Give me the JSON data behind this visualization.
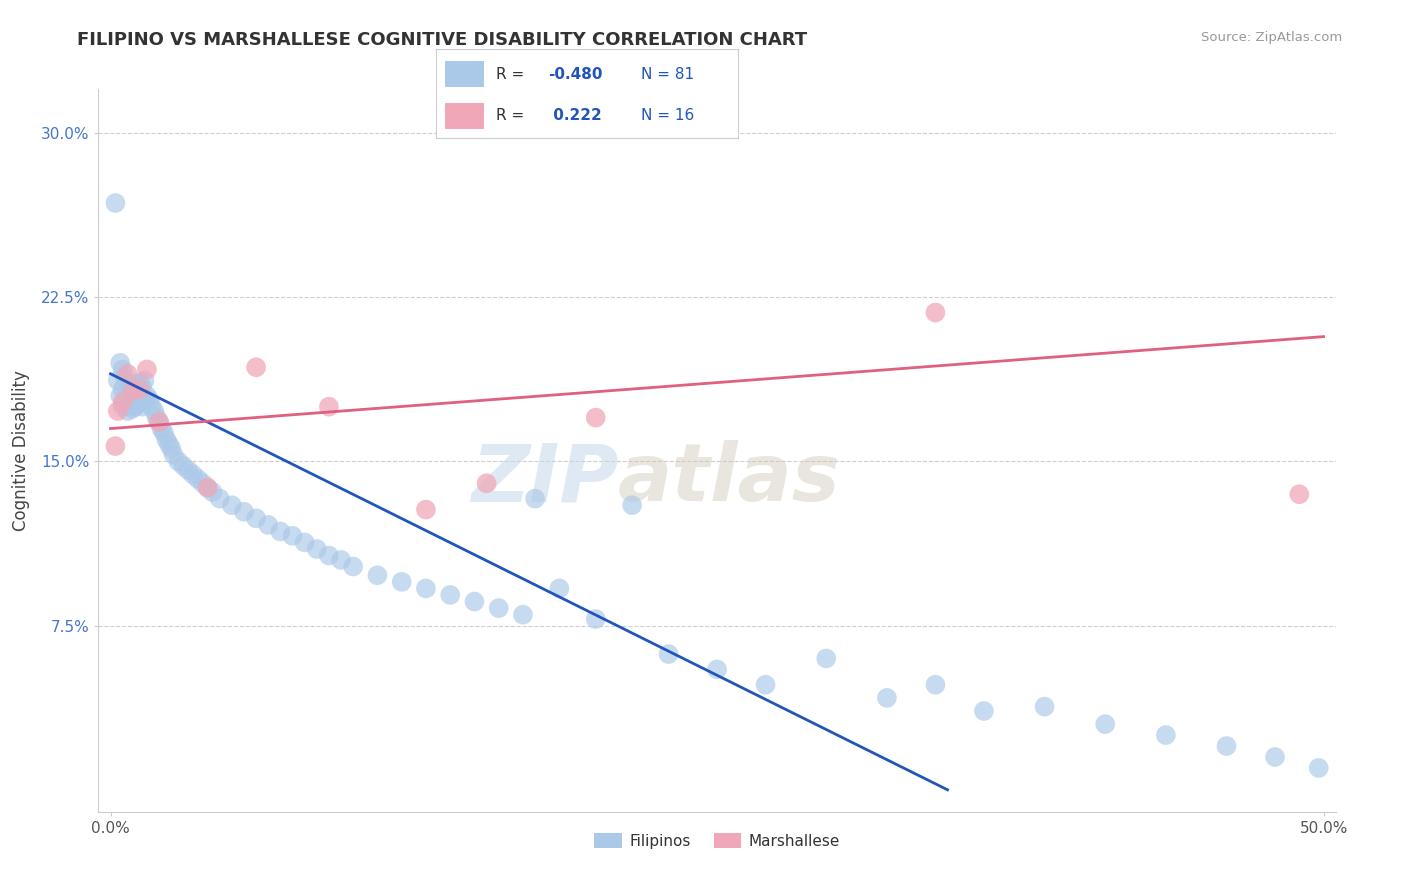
{
  "title": "FILIPINO VS MARSHALLESE COGNITIVE DISABILITY CORRELATION CHART",
  "source": "Source: ZipAtlas.com",
  "xlabel": "",
  "ylabel": "Cognitive Disability",
  "xlim": [
    -0.005,
    0.505
  ],
  "ylim": [
    -0.01,
    0.32
  ],
  "xticks": [
    0.0,
    0.5
  ],
  "xtick_labels": [
    "0.0%",
    "50.0%"
  ],
  "yticks": [
    0.075,
    0.15,
    0.225,
    0.3
  ],
  "ytick_labels": [
    "7.5%",
    "15.0%",
    "22.5%",
    "30.0%"
  ],
  "grid_color": "#bbbbbb",
  "background_color": "#ffffff",
  "filipino_color": "#aac8e8",
  "marshallese_color": "#f0a8b8",
  "filipino_line_color": "#2255bb",
  "marshallese_line_color": "#e06080",
  "filipino_R": -0.48,
  "filipino_N": 81,
  "marshallese_R": 0.222,
  "marshallese_N": 16,
  "watermark_text": "ZIP",
  "watermark_text2": "atlas",
  "fil_line_x0": 0.0,
  "fil_line_y0": 0.19,
  "fil_line_x1": 0.345,
  "fil_line_y1": 0.0,
  "mar_line_x0": 0.0,
  "mar_line_y0": 0.165,
  "mar_line_x1": 0.5,
  "mar_line_y1": 0.207,
  "filipino_x": [
    0.002,
    0.003,
    0.004,
    0.004,
    0.005,
    0.005,
    0.005,
    0.006,
    0.006,
    0.007,
    0.007,
    0.008,
    0.008,
    0.009,
    0.009,
    0.01,
    0.01,
    0.011,
    0.011,
    0.012,
    0.012,
    0.013,
    0.013,
    0.014,
    0.014,
    0.015,
    0.016,
    0.017,
    0.018,
    0.019,
    0.02,
    0.021,
    0.022,
    0.023,
    0.024,
    0.025,
    0.026,
    0.028,
    0.03,
    0.032,
    0.034,
    0.036,
    0.038,
    0.04,
    0.042,
    0.045,
    0.05,
    0.055,
    0.06,
    0.065,
    0.07,
    0.075,
    0.08,
    0.085,
    0.09,
    0.095,
    0.1,
    0.11,
    0.12,
    0.13,
    0.14,
    0.15,
    0.16,
    0.17,
    0.175,
    0.185,
    0.2,
    0.215,
    0.23,
    0.25,
    0.27,
    0.295,
    0.32,
    0.34,
    0.36,
    0.385,
    0.41,
    0.435,
    0.46,
    0.48,
    0.498
  ],
  "filipino_y": [
    0.268,
    0.187,
    0.18,
    0.195,
    0.175,
    0.183,
    0.192,
    0.178,
    0.188,
    0.173,
    0.182,
    0.176,
    0.185,
    0.174,
    0.183,
    0.175,
    0.184,
    0.176,
    0.185,
    0.178,
    0.186,
    0.175,
    0.184,
    0.179,
    0.187,
    0.18,
    0.178,
    0.175,
    0.173,
    0.17,
    0.168,
    0.165,
    0.163,
    0.16,
    0.158,
    0.156,
    0.153,
    0.15,
    0.148,
    0.146,
    0.144,
    0.142,
    0.14,
    0.138,
    0.136,
    0.133,
    0.13,
    0.127,
    0.124,
    0.121,
    0.118,
    0.116,
    0.113,
    0.11,
    0.107,
    0.105,
    0.102,
    0.098,
    0.095,
    0.092,
    0.089,
    0.086,
    0.083,
    0.08,
    0.133,
    0.092,
    0.078,
    0.13,
    0.062,
    0.055,
    0.048,
    0.06,
    0.042,
    0.048,
    0.036,
    0.038,
    0.03,
    0.025,
    0.02,
    0.015,
    0.01
  ],
  "marshallese_x": [
    0.002,
    0.003,
    0.005,
    0.007,
    0.009,
    0.012,
    0.015,
    0.02,
    0.04,
    0.06,
    0.09,
    0.13,
    0.155,
    0.2,
    0.34,
    0.49
  ],
  "marshallese_y": [
    0.157,
    0.173,
    0.177,
    0.19,
    0.182,
    0.183,
    0.192,
    0.168,
    0.138,
    0.193,
    0.175,
    0.128,
    0.14,
    0.17,
    0.218,
    0.135
  ]
}
